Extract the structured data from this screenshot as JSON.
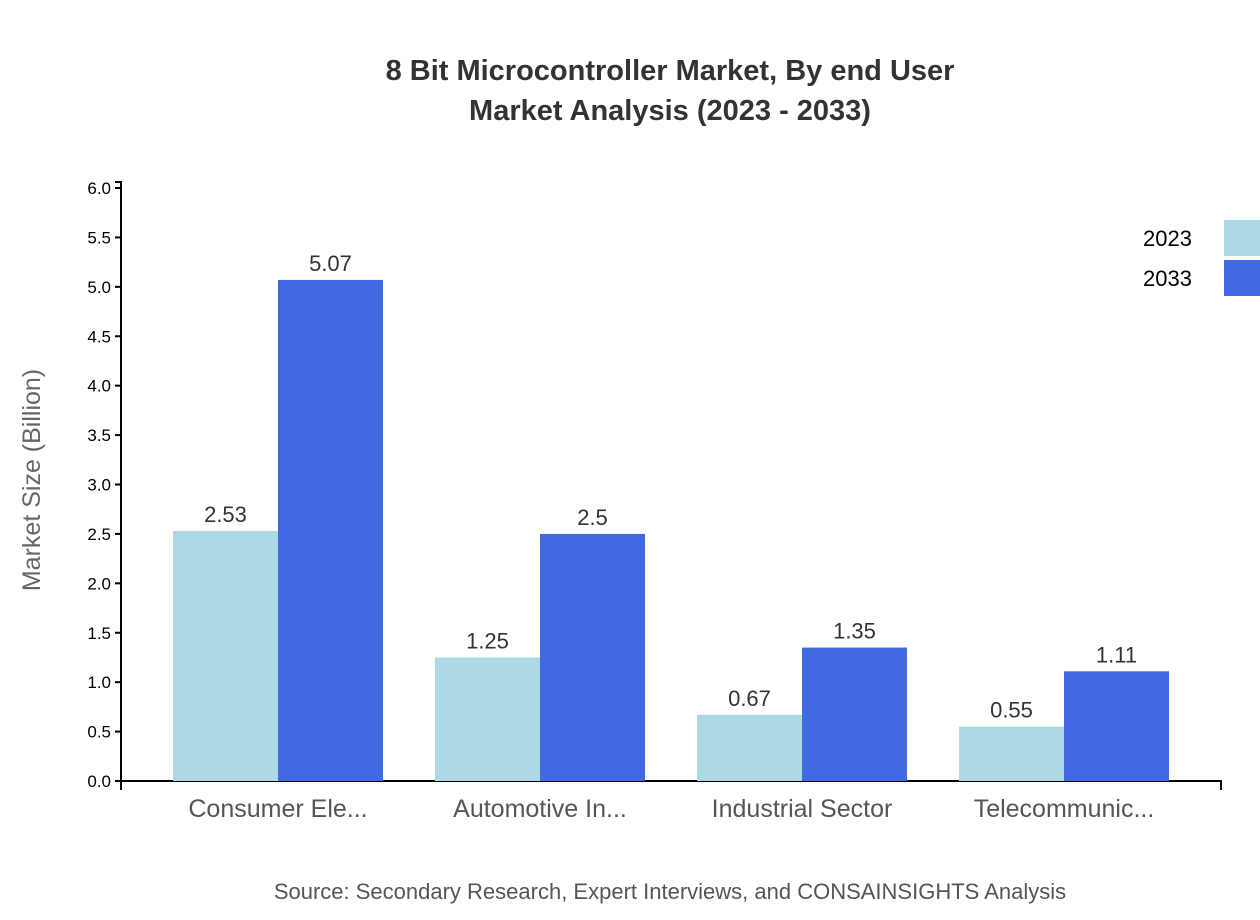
{
  "chart_data": {
    "type": "bar",
    "title_lines": [
      "8 Bit Microcontroller Market, By end User",
      "Market Analysis (2023 - 2033)"
    ],
    "xlabel": "",
    "ylabel": "Market Size (Billion)",
    "ylim": [
      0,
      6.0
    ],
    "yticks": [
      "0.0",
      "0.5",
      "1.0",
      "1.5",
      "2.0",
      "2.5",
      "3.0",
      "3.5",
      "4.0",
      "4.5",
      "5.0",
      "5.5",
      "6.0"
    ],
    "categories": [
      "Consumer Ele...",
      "Automotive In...",
      "Industrial Sector",
      "Telecommunic..."
    ],
    "series": [
      {
        "name": "2023",
        "color": "#add8e6",
        "values": [
          2.53,
          1.25,
          0.67,
          0.55
        ]
      },
      {
        "name": "2033",
        "color": "#4169e1",
        "values": [
          5.07,
          2.5,
          1.35,
          1.11
        ]
      }
    ],
    "legend_position": "top-right",
    "grid": false
  },
  "source": "Source: Secondary Research, Expert Interviews, and CONSAINSIGHTS Analysis"
}
